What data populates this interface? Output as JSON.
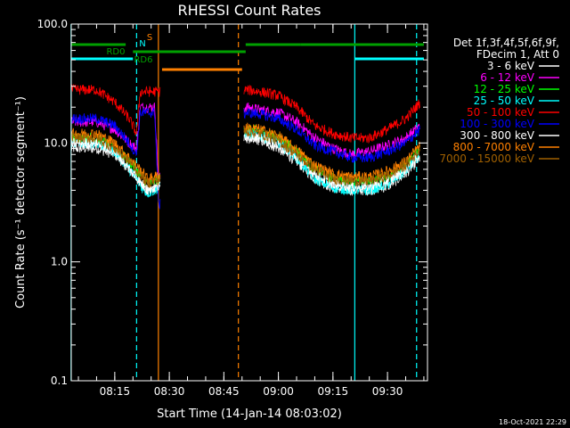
{
  "chart_data": {
    "type": "line",
    "title": "RHESSI Count Rates",
    "xlabel": "Start Time (14-Jan-14 08:03:02)",
    "ylabel": "Count Rate (s⁻¹ detector segment⁻¹)",
    "y_scale": "log",
    "ylim": [
      0.1,
      100.0
    ],
    "xlim": [
      "08:03:02",
      "09:41:00"
    ],
    "y_ticks": [
      "0.1",
      "1.0",
      "10.0",
      "100.0"
    ],
    "x_ticks": [
      "08:15",
      "08:30",
      "08:45",
      "09:00",
      "09:15",
      "09:30"
    ],
    "legend_header": [
      "Det 1f,3f,4f,5f,6f,9f,",
      "FDecim 1, Att 0"
    ],
    "legend_position": "right",
    "timestamp": "18-Oct-2021 22:29",
    "series": [
      {
        "name": "3 - 6 keV",
        "color": "#ffffff",
        "times": [
          "08:03",
          "08:10",
          "08:15",
          "08:19",
          "08:23",
          "08:24",
          "08:26",
          "08:27",
          "08:51",
          "08:55",
          "09:00",
          "09:05",
          "09:10",
          "09:15",
          "09:20",
          "09:25",
          "09:30",
          "09:35",
          "09:39"
        ],
        "values": [
          9.0,
          9.0,
          8.0,
          6.0,
          4.5,
          4.0,
          4.2,
          4.3,
          11.0,
          10.5,
          9.0,
          7.0,
          5.0,
          4.2,
          4.0,
          4.0,
          4.3,
          5.5,
          7.5
        ]
      },
      {
        "name": "6 - 12 keV",
        "color": "#ff00ff",
        "times": [
          "08:03",
          "08:10",
          "08:15",
          "08:19",
          "08:21",
          "08:22",
          "08:24",
          "08:26",
          "08:27",
          "08:51",
          "08:55",
          "09:00",
          "09:05",
          "09:10",
          "09:15",
          "09:20",
          "09:25",
          "09:30",
          "09:35",
          "09:39"
        ],
        "values": [
          15.0,
          15.0,
          13.0,
          10.0,
          9.0,
          20.0,
          20.0,
          20.0,
          5.0,
          20.0,
          19.0,
          18.0,
          15.0,
          11.0,
          9.0,
          8.0,
          8.5,
          9.5,
          11.0,
          14.0
        ]
      },
      {
        "name": "12 - 25 keV",
        "color": "#00ff00",
        "times": [
          "08:03",
          "08:10",
          "08:15",
          "08:19",
          "08:23",
          "08:24",
          "08:26",
          "08:27",
          "08:51",
          "08:55",
          "09:00",
          "09:05",
          "09:10",
          "09:15",
          "09:20",
          "09:25",
          "09:30",
          "09:35",
          "09:39"
        ],
        "values": [
          11.0,
          11.0,
          9.0,
          7.0,
          5.0,
          4.5,
          4.8,
          5.0,
          13.0,
          12.5,
          11.0,
          8.5,
          6.0,
          5.0,
          4.7,
          4.7,
          5.2,
          6.5,
          9.0
        ]
      },
      {
        "name": "25 - 50 keV",
        "color": "#00ffff",
        "times": [
          "08:03",
          "08:10",
          "08:15",
          "08:19",
          "08:23",
          "08:24",
          "08:26",
          "08:27",
          "08:51",
          "08:55",
          "09:00",
          "09:05",
          "09:10",
          "09:15",
          "09:20",
          "09:25",
          "09:30",
          "09:35",
          "09:39"
        ],
        "values": [
          10.0,
          10.0,
          8.5,
          6.0,
          4.0,
          3.8,
          4.0,
          4.2,
          12.0,
          11.5,
          10.0,
          7.5,
          5.0,
          4.2,
          4.0,
          4.0,
          4.5,
          5.8,
          8.0
        ]
      },
      {
        "name": "50 - 100 keV",
        "color": "#ff0000",
        "times": [
          "08:03",
          "08:10",
          "08:15",
          "08:19",
          "08:21",
          "08:22",
          "08:24",
          "08:26",
          "08:27",
          "08:51",
          "08:55",
          "09:00",
          "09:05",
          "09:10",
          "09:15",
          "09:20",
          "09:25",
          "09:30",
          "09:35",
          "09:39"
        ],
        "values": [
          28.0,
          28.0,
          22.0,
          16.0,
          12.0,
          27.0,
          27.0,
          27.0,
          27.0,
          28.0,
          27.0,
          25.0,
          20.0,
          14.0,
          12.0,
          11.0,
          11.0,
          13.0,
          16.0,
          22.0
        ]
      },
      {
        "name": "100 - 300 keV",
        "color": "#0000ff",
        "times": [
          "08:03",
          "08:10",
          "08:15",
          "08:19",
          "08:21",
          "08:22",
          "08:24",
          "08:26",
          "08:27",
          "08:51",
          "08:55",
          "09:00",
          "09:05",
          "09:10",
          "09:15",
          "09:20",
          "09:25",
          "09:30",
          "09:35",
          "09:39"
        ],
        "values": [
          16.0,
          16.0,
          14.0,
          10.0,
          8.0,
          18.0,
          18.0,
          18.0,
          3.0,
          18.0,
          17.5,
          16.0,
          13.0,
          9.5,
          8.5,
          7.5,
          7.5,
          8.5,
          10.0,
          13.0
        ]
      },
      {
        "name": "300 - 800 keV",
        "color": "#ffffff",
        "times": [
          "08:03",
          "08:10",
          "08:15",
          "08:19",
          "08:23",
          "08:24",
          "08:26",
          "08:27",
          "08:51",
          "08:55",
          "09:00",
          "09:05",
          "09:10",
          "09:15",
          "09:20",
          "09:25",
          "09:30",
          "09:35",
          "09:39"
        ],
        "values": [
          10.0,
          10.0,
          8.5,
          6.0,
          4.3,
          4.0,
          4.2,
          4.3,
          11.5,
          11.0,
          9.5,
          7.5,
          5.5,
          4.5,
          4.3,
          4.3,
          4.8,
          6.0,
          8.0
        ]
      },
      {
        "name": "800 - 7000 keV",
        "color": "#ff8000",
        "times": [
          "08:03",
          "08:10",
          "08:15",
          "08:19",
          "08:23",
          "08:24",
          "08:26",
          "08:27",
          "08:51",
          "08:55",
          "09:00",
          "09:05",
          "09:10",
          "09:15",
          "09:20",
          "09:25",
          "09:30",
          "09:35",
          "09:39"
        ],
        "values": [
          12.0,
          12.0,
          10.0,
          7.5,
          5.5,
          5.0,
          5.2,
          5.3,
          13.5,
          13.0,
          11.5,
          8.8,
          6.5,
          5.5,
          5.2,
          5.2,
          5.8,
          7.0,
          9.5
        ]
      },
      {
        "name": "7000 - 15000 keV",
        "color": "#a06000",
        "times": [
          "08:03",
          "08:10",
          "08:15",
          "08:19",
          "08:23",
          "08:24",
          "08:26",
          "08:27",
          "08:51",
          "08:55",
          "09:00",
          "09:05",
          "09:10",
          "09:15",
          "09:20",
          "09:25",
          "09:30",
          "09:35",
          "09:39"
        ],
        "values": [
          11.0,
          11.0,
          9.0,
          7.0,
          5.0,
          4.6,
          4.8,
          4.9,
          12.5,
          12.0,
          10.5,
          8.0,
          6.0,
          5.0,
          4.8,
          4.8,
          5.3,
          6.5,
          8.8
        ]
      }
    ],
    "state_bars": [
      {
        "label": "S",
        "color": "#ff8000",
        "level": 78,
        "segments": [
          [
            "08:28",
            "08:50"
          ]
        ]
      },
      {
        "label": "N",
        "color": "#00ffff",
        "level": 66,
        "segments": [
          [
            "08:03",
            "08:20"
          ],
          [
            "09:21",
            "09:40"
          ]
        ]
      },
      {
        "label": "RD0",
        "color": "#00a000",
        "level": 58,
        "segments": [
          [
            "08:20",
            "08:51"
          ]
        ]
      },
      {
        "label": "RD6",
        "color": "#00a000",
        "level": 50,
        "segments": [
          [
            "08:03",
            "08:18"
          ],
          [
            "08:51",
            "09:06"
          ],
          [
            "09:06",
            "09:35"
          ],
          [
            "09:35",
            "09:40"
          ]
        ]
      }
    ],
    "vertical_markers": [
      {
        "time": "08:03",
        "color": "#00ffff",
        "style": "solid"
      },
      {
        "time": "08:21",
        "color": "#00ffff",
        "style": "dashed"
      },
      {
        "time": "08:27",
        "color": "#ff8000",
        "style": "solid"
      },
      {
        "time": "08:49",
        "color": "#ff8000",
        "style": "dashed"
      },
      {
        "time": "09:21",
        "color": "#00ffff",
        "style": "solid"
      },
      {
        "time": "09:38",
        "color": "#00ffff",
        "style": "dashed"
      }
    ]
  }
}
